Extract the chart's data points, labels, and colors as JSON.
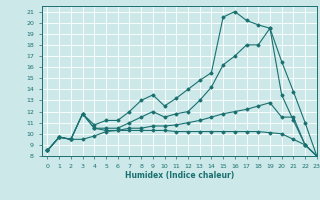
{
  "xlabel": "Humidex (Indice chaleur)",
  "xlim": [
    -0.5,
    23
  ],
  "ylim": [
    8,
    21.5
  ],
  "yticks": [
    8,
    9,
    10,
    11,
    12,
    13,
    14,
    15,
    16,
    17,
    18,
    19,
    20,
    21
  ],
  "xticks": [
    0,
    1,
    2,
    3,
    4,
    5,
    6,
    7,
    8,
    9,
    10,
    11,
    12,
    13,
    14,
    15,
    16,
    17,
    18,
    19,
    20,
    21,
    22,
    23
  ],
  "background_color": "#cce8e8",
  "grid_color": "#ffffff",
  "line_color": "#1a7070",
  "line1": {
    "x": [
      0,
      1,
      2,
      3,
      4,
      5,
      6,
      7,
      8,
      9,
      10,
      11,
      12,
      13,
      14,
      15,
      16,
      17,
      18,
      19,
      20,
      21,
      22,
      23
    ],
    "y": [
      8.5,
      9.7,
      9.5,
      9.5,
      9.8,
      10.2,
      10.3,
      10.3,
      10.3,
      10.3,
      10.3,
      10.2,
      10.2,
      10.2,
      10.2,
      10.2,
      10.2,
      10.2,
      10.2,
      10.1,
      10.0,
      9.5,
      9.0,
      8.0
    ]
  },
  "line2": {
    "x": [
      0,
      1,
      2,
      3,
      4,
      5,
      6,
      7,
      8,
      9,
      10,
      11,
      12,
      13,
      14,
      15,
      16,
      17,
      18,
      19,
      20,
      21,
      22,
      23
    ],
    "y": [
      8.5,
      9.7,
      9.5,
      11.8,
      10.5,
      10.3,
      10.3,
      10.5,
      10.5,
      10.7,
      10.7,
      10.8,
      11.0,
      11.2,
      11.5,
      11.8,
      12.0,
      12.2,
      12.5,
      12.8,
      11.5,
      11.5,
      9.0,
      8.0
    ]
  },
  "line3": {
    "x": [
      0,
      1,
      2,
      3,
      4,
      5,
      6,
      7,
      8,
      9,
      10,
      11,
      12,
      13,
      14,
      15,
      16,
      17,
      18,
      19,
      20,
      21,
      22,
      23
    ],
    "y": [
      8.5,
      9.7,
      9.5,
      11.8,
      10.5,
      10.5,
      10.5,
      11.0,
      11.5,
      12.0,
      11.5,
      11.8,
      12.0,
      13.0,
      14.2,
      16.2,
      17.0,
      18.0,
      18.0,
      19.5,
      13.5,
      11.2,
      9.0,
      8.0
    ]
  },
  "line4": {
    "x": [
      0,
      1,
      2,
      3,
      4,
      5,
      6,
      7,
      8,
      9,
      10,
      11,
      12,
      13,
      14,
      15,
      16,
      17,
      18,
      19,
      20,
      21,
      22,
      23
    ],
    "y": [
      8.5,
      9.7,
      9.5,
      11.8,
      10.8,
      11.2,
      11.2,
      12.0,
      13.0,
      13.5,
      12.5,
      13.2,
      14.0,
      14.8,
      15.5,
      20.5,
      21.0,
      20.2,
      19.8,
      19.5,
      16.5,
      13.8,
      11.0,
      8.0
    ]
  }
}
